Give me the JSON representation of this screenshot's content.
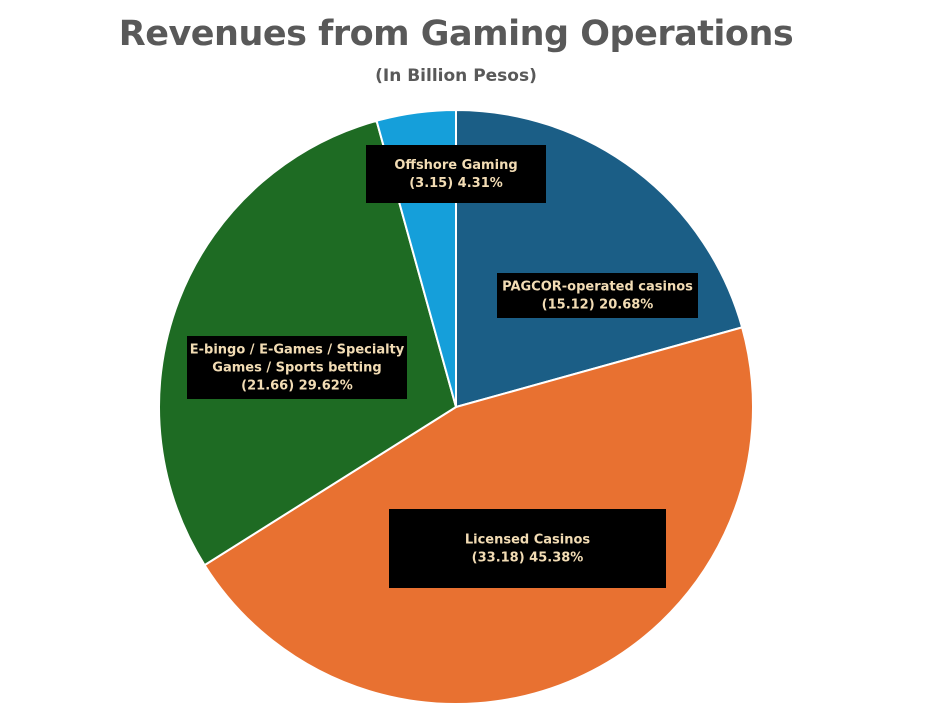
{
  "title": "Revenues from Gaming Operations",
  "subtitle": "(In Billion Pesos)",
  "chart_data": {
    "type": "pie",
    "title": "Revenues from Gaming Operations",
    "subtitle": "(In Billion Pesos)",
    "legend": "none",
    "slices": [
      {
        "name": "PAGCOR-operated casinos",
        "value": 15.12,
        "percent": 20.68,
        "color": "#1b5e86",
        "label_lines": [
          "PAGCOR-operated casinos",
          "(15.12) 20.68%"
        ]
      },
      {
        "name": "Licensed Casinos",
        "value": 33.18,
        "percent": 45.38,
        "color": "#e87131",
        "label_lines": [
          "Licensed Casinos",
          "(33.18) 45.38%"
        ]
      },
      {
        "name": "E-bingo / E-Games / Specialty Games / Sports betting",
        "value": 21.66,
        "percent": 29.62,
        "color": "#1e6b23",
        "label_lines": [
          "E-bingo / E-Games / Specialty",
          "Games / Sports betting",
          "(21.66) 29.62%"
        ]
      },
      {
        "name": "Offshore Gaming",
        "value": 3.15,
        "percent": 4.31,
        "color": "#159fda",
        "label_lines": [
          "Offshore Gaming",
          "(3.15) 4.31%"
        ]
      }
    ]
  }
}
